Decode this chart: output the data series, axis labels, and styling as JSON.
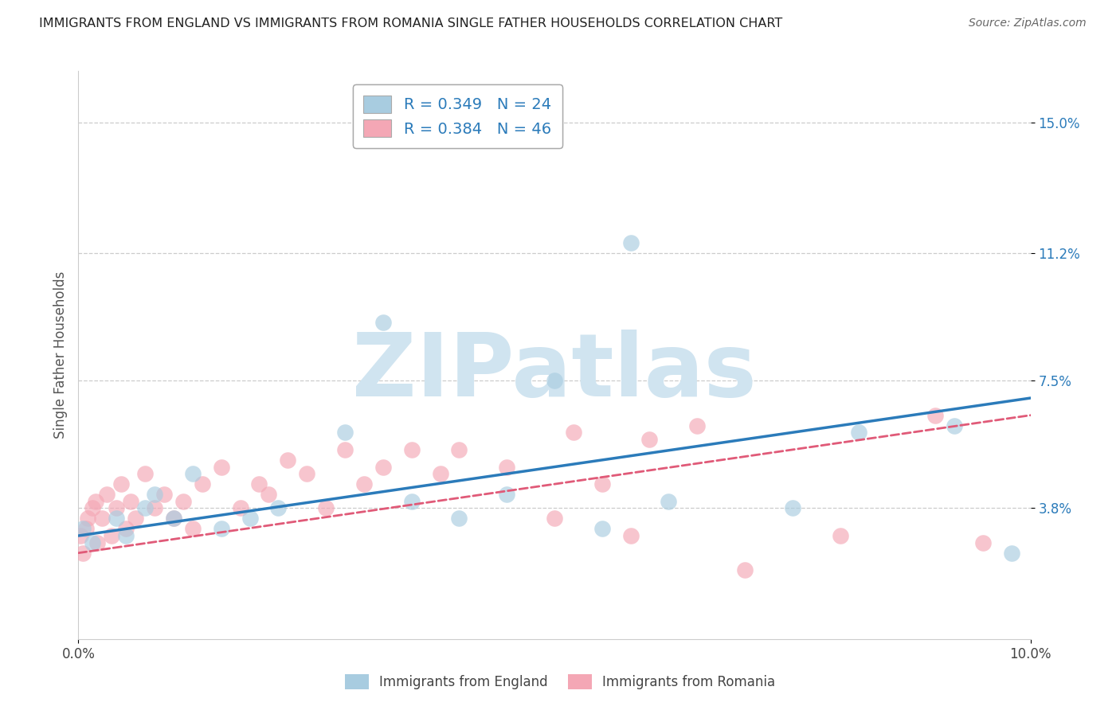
{
  "title": "IMMIGRANTS FROM ENGLAND VS IMMIGRANTS FROM ROMANIA SINGLE FATHER HOUSEHOLDS CORRELATION CHART",
  "source": "Source: ZipAtlas.com",
  "ylabel": "Single Father Households",
  "xlim": [
    0.0,
    10.0
  ],
  "ylim": [
    0.0,
    16.5
  ],
  "yticks": [
    3.8,
    7.5,
    11.2,
    15.0
  ],
  "xtick_positions": [
    0.0,
    10.0
  ],
  "xtick_labels": [
    "0.0%",
    "10.0%"
  ],
  "ytick_labels": [
    "3.8%",
    "7.5%",
    "11.2%",
    "15.0%"
  ],
  "legend_entry1": "R = 0.349   N = 24",
  "legend_entry2": "R = 0.384   N = 46",
  "legend_label1": "Immigrants from England",
  "legend_label2": "Immigrants from Romania",
  "england_color": "#a8cce0",
  "romania_color": "#f4a7b5",
  "england_line_color": "#2b7bba",
  "romania_line_color": "#e05a78",
  "england_scatter_x": [
    0.05,
    0.15,
    0.4,
    0.5,
    0.7,
    0.8,
    1.0,
    1.2,
    1.5,
    1.8,
    2.1,
    2.8,
    3.2,
    3.5,
    4.0,
    4.5,
    5.0,
    5.5,
    5.8,
    6.2,
    7.5,
    8.2,
    9.2,
    9.8
  ],
  "england_scatter_y": [
    3.2,
    2.8,
    3.5,
    3.0,
    3.8,
    4.2,
    3.5,
    4.8,
    3.2,
    3.5,
    3.8,
    6.0,
    9.2,
    4.0,
    3.5,
    4.2,
    7.5,
    3.2,
    11.5,
    4.0,
    3.8,
    6.0,
    6.2,
    2.5
  ],
  "romania_scatter_x": [
    0.02,
    0.05,
    0.08,
    0.1,
    0.15,
    0.18,
    0.2,
    0.25,
    0.3,
    0.35,
    0.4,
    0.45,
    0.5,
    0.55,
    0.6,
    0.7,
    0.8,
    0.9,
    1.0,
    1.1,
    1.2,
    1.3,
    1.5,
    1.7,
    1.9,
    2.0,
    2.2,
    2.4,
    2.6,
    2.8,
    3.0,
    3.2,
    3.5,
    3.8,
    4.0,
    4.5,
    5.0,
    5.2,
    5.5,
    5.8,
    6.0,
    6.5,
    7.0,
    8.0,
    9.0,
    9.5
  ],
  "romania_scatter_y": [
    3.0,
    2.5,
    3.2,
    3.5,
    3.8,
    4.0,
    2.8,
    3.5,
    4.2,
    3.0,
    3.8,
    4.5,
    3.2,
    4.0,
    3.5,
    4.8,
    3.8,
    4.2,
    3.5,
    4.0,
    3.2,
    4.5,
    5.0,
    3.8,
    4.5,
    4.2,
    5.2,
    4.8,
    3.8,
    5.5,
    4.5,
    5.0,
    5.5,
    4.8,
    5.5,
    5.0,
    3.5,
    6.0,
    4.5,
    3.0,
    5.8,
    6.2,
    2.0,
    3.0,
    6.5,
    2.8
  ],
  "england_line_x": [
    0.0,
    10.0
  ],
  "england_line_y": [
    3.0,
    7.0
  ],
  "romania_line_x": [
    0.0,
    10.0
  ],
  "romania_line_y": [
    2.5,
    6.5
  ],
  "watermark_text": "ZIPatlas",
  "watermark_color": "#d0e4f0",
  "background_color": "#ffffff",
  "grid_color": "#cccccc",
  "grid_yticks": [
    3.8,
    7.5,
    11.2,
    15.0
  ],
  "title_fontsize": 11.5,
  "axis_tick_color": "#2b7bba",
  "legend_text_color": "#2b7bba"
}
